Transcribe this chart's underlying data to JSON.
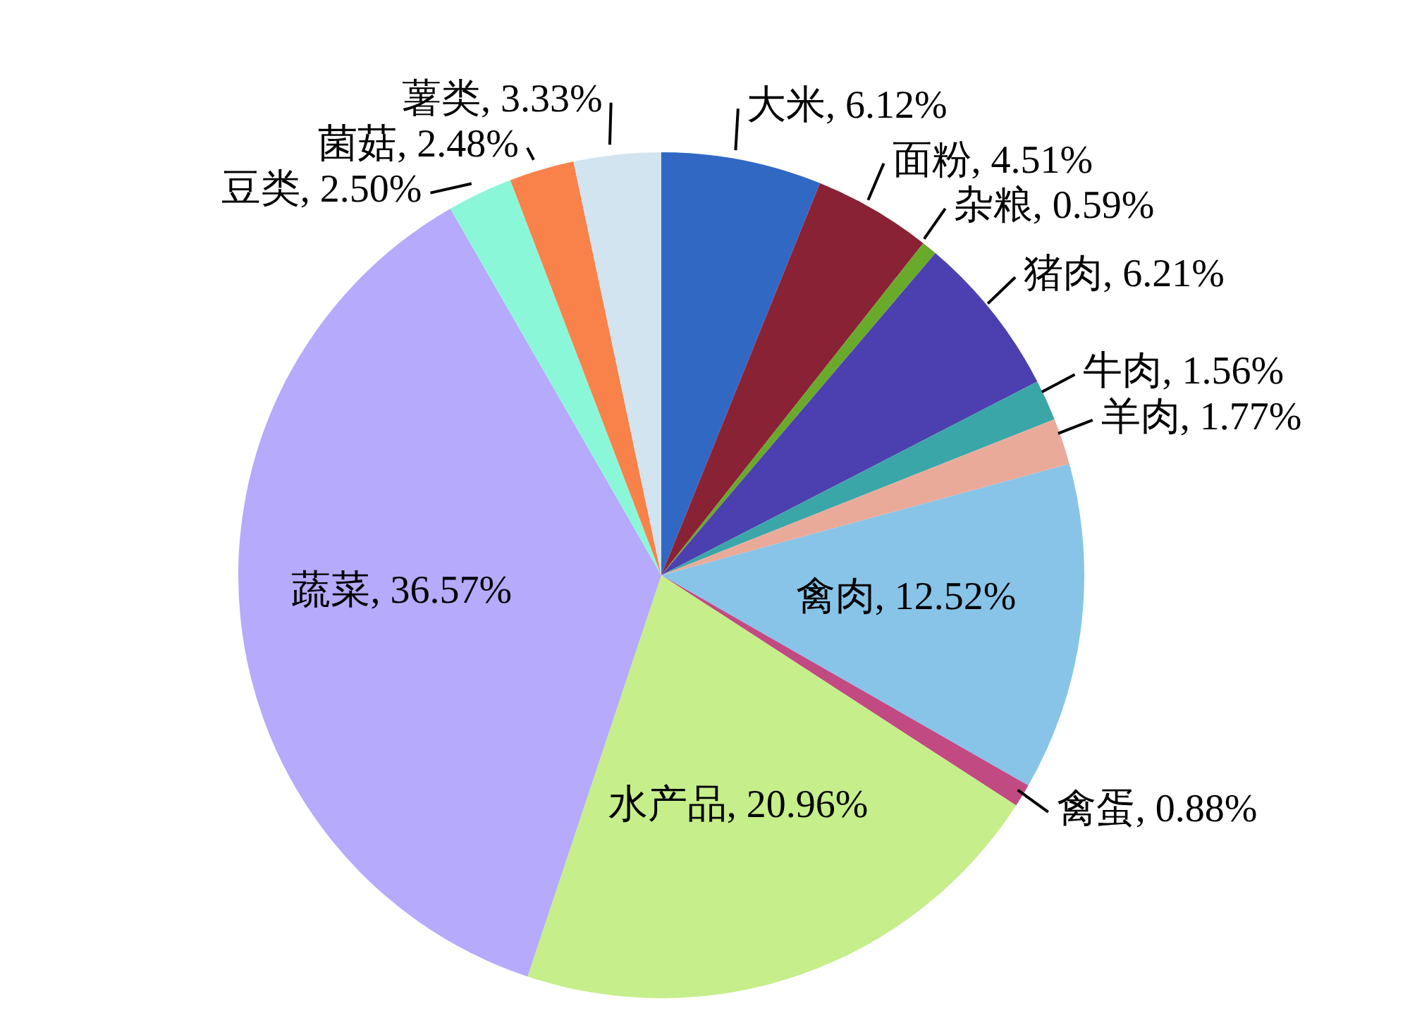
{
  "chart_data": {
    "type": "pie",
    "categories": [
      "大米",
      "面粉",
      "杂粮",
      "猪肉",
      "牛肉",
      "羊肉",
      "禽肉",
      "禽蛋",
      "水产品",
      "蔬菜",
      "豆类",
      "菌菇",
      "薯类"
    ],
    "values": [
      6.12,
      4.51,
      0.59,
      6.21,
      1.56,
      1.77,
      12.52,
      0.88,
      20.96,
      36.57,
      2.5,
      2.48,
      3.33
    ],
    "colors": [
      "#3068c4",
      "#8a2236",
      "#6aaa2a",
      "#4c40b0",
      "#3aa6a8",
      "#eaaa9a",
      "#88c4e8",
      "#c24a82",
      "#c6ee8a",
      "#b6aafc",
      "#8af8d8",
      "#f8824a",
      "#d2e4f0"
    ],
    "value_labels": [
      "6.12%",
      "4.51%",
      "0.59%",
      "6.21%",
      "1.56%",
      "1.77%",
      "12.52%",
      "0.88%",
      "20.96%",
      "36.57%",
      "2.50%",
      "2.48%",
      "3.33%"
    ],
    "legend": false
  }
}
